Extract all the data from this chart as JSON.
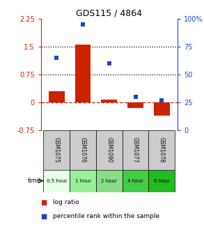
{
  "title": "GDS115 / 4864",
  "samples": [
    "GSM1075",
    "GSM1076",
    "GSM1090",
    "GSM1077",
    "GSM1078"
  ],
  "time_labels": [
    "0.5 hour",
    "1 hour",
    "2 hour",
    "4 hour",
    "6 hour"
  ],
  "time_colors": [
    "#e8ffe8",
    "#99ee99",
    "#88dd88",
    "#44cc44",
    "#22bb22"
  ],
  "log_ratios": [
    0.3,
    1.55,
    0.07,
    -0.15,
    -0.37
  ],
  "percentiles": [
    65,
    95,
    60,
    30,
    27
  ],
  "left_ylim": [
    -0.75,
    2.25
  ],
  "right_ylim": [
    0,
    100
  ],
  "left_yticks": [
    -0.75,
    0,
    0.75,
    1.5,
    2.25
  ],
  "right_yticks": [
    0,
    25,
    50,
    75,
    100
  ],
  "left_yticklabels": [
    "-0.75",
    "0",
    "0.75",
    "1.5",
    "2.25"
  ],
  "right_yticklabels": [
    "0",
    "25",
    "50",
    "75",
    "100%"
  ],
  "hlines": [
    0.75,
    1.5
  ],
  "bar_color": "#cc2200",
  "scatter_color": "#2244cc",
  "background_color": "#ffffff",
  "sample_box_color": "#cccccc",
  "bar_width": 0.6
}
